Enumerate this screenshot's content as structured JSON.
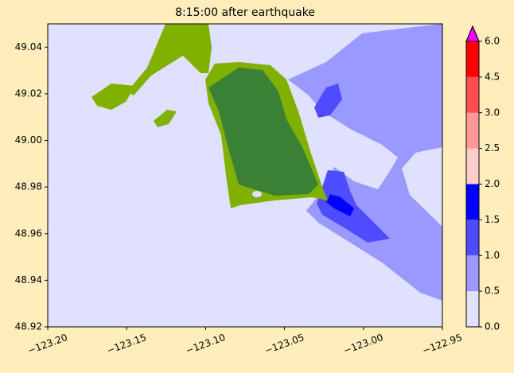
{
  "chart_data": {
    "type": "map",
    "title": "8:15:00 after earthquake",
    "xlim": [
      -123.2,
      -122.95
    ],
    "xticks": [
      {
        "value": -123.2,
        "label": "−123.20"
      },
      {
        "value": -123.15,
        "label": "−123.15"
      },
      {
        "value": -123.1,
        "label": "−123.10"
      },
      {
        "value": -123.05,
        "label": "−123.05"
      },
      {
        "value": -123.0,
        "label": "−123.00"
      },
      {
        "value": -122.95,
        "label": "−122.95"
      }
    ],
    "ylim": [
      48.92,
      49.05
    ],
    "yticks": [
      {
        "value": 48.92,
        "label": "48.92"
      },
      {
        "value": 48.94,
        "label": "48.94"
      },
      {
        "value": 48.96,
        "label": "48.96"
      },
      {
        "value": 48.98,
        "label": "48.98"
      },
      {
        "value": 49.0,
        "label": "49.00"
      },
      {
        "value": 49.02,
        "label": "49.02"
      },
      {
        "value": 49.04,
        "label": "49.04"
      }
    ],
    "colorbar": {
      "bounds": [
        {
          "value": 0,
          "label": "0.0"
        },
        {
          "value": 0.5,
          "label": "0.5"
        },
        {
          "value": 1,
          "label": "1.0"
        },
        {
          "value": 1.5,
          "label": "1.5"
        },
        {
          "value": 2,
          "label": "2.0"
        },
        {
          "value": 2.5,
          "label": "2.5"
        },
        {
          "value": 3,
          "label": "3.0"
        },
        {
          "value": 4.5,
          "label": "4.5"
        },
        {
          "value": 6,
          "label": "6.0"
        }
      ],
      "colors": [
        "#e0e0ff",
        "#9999ff",
        "#4d4dff",
        "#0000ff",
        "#ffcccc",
        "#ff9999",
        "#ff4d4d",
        "#ff0000"
      ],
      "extend_color": "#ff00ff"
    }
  }
}
